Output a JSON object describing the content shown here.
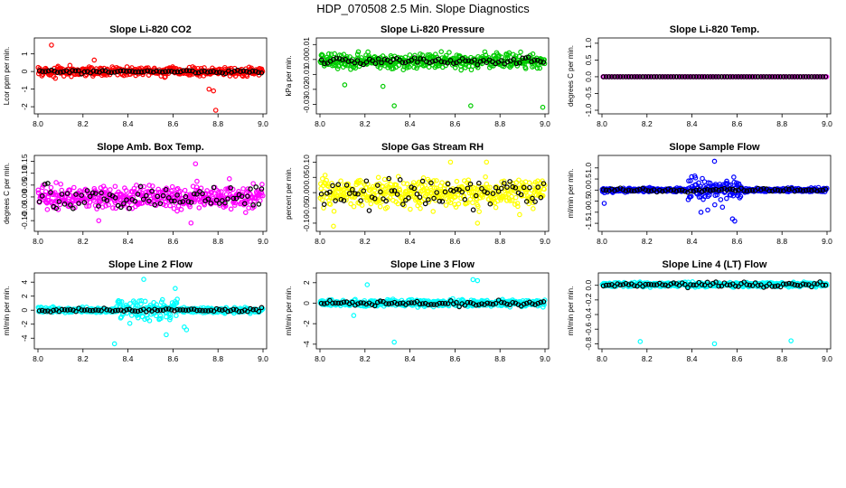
{
  "title": "HDP_070508  2.5 Min. Slope Diagnostics",
  "chart_data": [
    {
      "type": "scatter",
      "title": "Slope Li-820 CO2",
      "ylabel": "Lcor ppm per min.",
      "color": "#ff0000",
      "xlim": [
        8.0,
        9.0
      ],
      "ylim": [
        -2.2,
        1.7
      ],
      "xticks": [
        8.0,
        8.2,
        8.4,
        8.6,
        8.8,
        9.0
      ],
      "xtick_labels": [
        "8.0",
        "8.2",
        "8.4",
        "8.6",
        "8.8",
        "9.0"
      ],
      "yticks": [
        -2,
        -1,
        0,
        1
      ],
      "ytick_labels": [
        "-2",
        "-1",
        "0",
        "1"
      ],
      "n_points": 420,
      "black_n": 75,
      "spread": 0.25,
      "black_spread": 0.1,
      "outliers": [
        [
          8.06,
          1.5
        ],
        [
          8.76,
          -1.0
        ],
        [
          8.78,
          -1.1
        ],
        [
          8.79,
          -2.2
        ],
        [
          8.25,
          0.65
        ]
      ]
    },
    {
      "type": "scatter",
      "title": "Slope Li-820 Pressure",
      "ylabel": "kPa per min.",
      "color": "#00cc00",
      "xlim": [
        8.0,
        9.0
      ],
      "ylim": [
        -0.034,
        0.012
      ],
      "xticks": [
        8.0,
        8.2,
        8.4,
        8.6,
        8.8,
        9.0
      ],
      "xtick_labels": [
        "8.0",
        "8.2",
        "8.4",
        "8.6",
        "8.8",
        "9.0"
      ],
      "yticks": [
        -0.03,
        -0.02,
        -0.01,
        0.0,
        0.01
      ],
      "ytick_labels": [
        "-0.03",
        "-0.02",
        "-0.01",
        "0.00",
        "0.01"
      ],
      "n_points": 420,
      "black_n": 75,
      "center": -0.001,
      "spread": 0.005,
      "black_spread": 0.0025,
      "outliers": [
        [
          8.33,
          -0.031
        ],
        [
          8.67,
          -0.031
        ],
        [
          8.99,
          -0.032
        ],
        [
          8.28,
          -0.018
        ],
        [
          8.11,
          -0.017
        ]
      ]
    },
    {
      "type": "scatter",
      "title": "Slope Li-820 Temp.",
      "ylabel": "degrees C per min.",
      "color": "#ff00ff",
      "xlim": [
        8.0,
        9.0
      ],
      "ylim": [
        -1.0,
        1.05
      ],
      "xticks": [
        8.0,
        8.2,
        8.4,
        8.6,
        8.8,
        9.0
      ],
      "xtick_labels": [
        "8.0",
        "8.2",
        "8.4",
        "8.6",
        "8.8",
        "9.0"
      ],
      "yticks": [
        -1.0,
        -0.5,
        0.0,
        0.5,
        1.0
      ],
      "ytick_labels": [
        "-1.0",
        "-0.5",
        "0.0",
        "0.5",
        "1.0"
      ],
      "n_points": 120,
      "black_n": 80,
      "spread": 0.0,
      "black_spread": 0.0,
      "outliers": []
    },
    {
      "type": "scatter",
      "title": "Slope Amb. Box Temp.",
      "ylabel": "degrees C per min.",
      "color": "#ff00ff",
      "xlim": [
        8.0,
        9.0
      ],
      "ylim": [
        -0.13,
        0.16
      ],
      "xticks": [
        8.0,
        8.2,
        8.4,
        8.6,
        8.8,
        9.0
      ],
      "xtick_labels": [
        "8.0",
        "8.2",
        "8.4",
        "8.6",
        "8.8",
        "9.0"
      ],
      "yticks": [
        -0.1,
        -0.05,
        0.0,
        0.05,
        0.1,
        0.15
      ],
      "ytick_labels": [
        "-0.10",
        "-0.05",
        "0.00",
        "0.05",
        "0.10",
        "0.15"
      ],
      "n_points": 460,
      "black_n": 80,
      "spread": 0.05,
      "black_spread": 0.05,
      "outliers": [
        [
          8.7,
          0.14
        ],
        [
          8.68,
          -0.11
        ],
        [
          8.27,
          -0.1
        ]
      ]
    },
    {
      "type": "scatter",
      "title": "Slope Gas Stream RH",
      "ylabel": "percent per min.",
      "color": "#ffff00",
      "xlim": [
        8.0,
        9.0
      ],
      "ylim": [
        -0.115,
        0.11
      ],
      "xticks": [
        8.0,
        8.2,
        8.4,
        8.6,
        8.8,
        9.0
      ],
      "xtick_labels": [
        "8.0",
        "8.2",
        "8.4",
        "8.6",
        "8.8",
        "9.0"
      ],
      "yticks": [
        -0.1,
        -0.05,
        0.0,
        0.05,
        0.1
      ],
      "ytick_labels": [
        "-0.10",
        "-0.05",
        "0.00",
        "0.05",
        "0.10"
      ],
      "n_points": 460,
      "black_n": 80,
      "spread": 0.045,
      "black_spread": 0.045,
      "outliers": [
        [
          8.06,
          -0.11
        ],
        [
          8.7,
          -0.1
        ],
        [
          8.74,
          0.1
        ],
        [
          8.58,
          0.1
        ]
      ]
    },
    {
      "type": "scatter",
      "title": "Slope Sample Flow",
      "ylabel": "ml/min per min.",
      "color": "#0000ff",
      "xlim": [
        8.0,
        9.0
      ],
      "ylim": [
        -1.7,
        1.4
      ],
      "xticks": [
        8.0,
        8.2,
        8.4,
        8.6,
        8.8,
        9.0
      ],
      "xtick_labels": [
        "8.0",
        "8.2",
        "8.4",
        "8.6",
        "8.8",
        "9.0"
      ],
      "yticks": [
        -1.5,
        -1.0,
        -0.5,
        0.0,
        0.5,
        1.0
      ],
      "ytick_labels": [
        "-1.5",
        "-1.0",
        "-0.5",
        "0.0",
        "0.5",
        "1.0"
      ],
      "n_points": 460,
      "black_n": 80,
      "spread": 0.08,
      "black_spread": 0.07,
      "burst": [
        8.38,
        8.62,
        0.55
      ],
      "outliers": [
        [
          8.5,
          1.3
        ],
        [
          8.59,
          -1.4
        ],
        [
          8.58,
          -1.3
        ],
        [
          8.44,
          -1.0
        ],
        [
          8.47,
          -0.9
        ],
        [
          8.01,
          -0.6
        ]
      ]
    },
    {
      "type": "scatter",
      "title": "Slope Line 2 Flow",
      "ylabel": "ml/min per min.",
      "color": "#00ffff",
      "xlim": [
        8.0,
        9.0
      ],
      "ylim": [
        -5.0,
        4.8
      ],
      "xticks": [
        8.0,
        8.2,
        8.4,
        8.6,
        8.8,
        9.0
      ],
      "xtick_labels": [
        "8.0",
        "8.2",
        "8.4",
        "8.6",
        "8.8",
        "9.0"
      ],
      "yticks": [
        -4,
        -2,
        0,
        2,
        4
      ],
      "ytick_labels": [
        "-4",
        "-2",
        "0",
        "2",
        "4"
      ],
      "n_points": 460,
      "black_n": 80,
      "spread": 0.35,
      "black_spread": 0.25,
      "burst": [
        8.35,
        8.62,
        1.6
      ],
      "outliers": [
        [
          8.34,
          -4.8
        ],
        [
          8.47,
          4.4
        ],
        [
          8.57,
          -3.5
        ],
        [
          8.61,
          3.1
        ],
        [
          8.66,
          -2.8
        ],
        [
          8.65,
          -2.4
        ]
      ]
    },
    {
      "type": "scatter",
      "title": "Slope Line 3 Flow",
      "ylabel": "ml/min per min.",
      "color": "#00ffff",
      "xlim": [
        8.0,
        9.0
      ],
      "ylim": [
        -4.1,
        2.6
      ],
      "xticks": [
        8.0,
        8.2,
        8.4,
        8.6,
        8.8,
        9.0
      ],
      "xtick_labels": [
        "8.0",
        "8.2",
        "8.4",
        "8.6",
        "8.8",
        "9.0"
      ],
      "yticks": [
        -4,
        -2,
        0,
        2
      ],
      "ytick_labels": [
        "-4",
        "-2",
        "0",
        "2"
      ],
      "n_points": 460,
      "black_n": 80,
      "spread": 0.3,
      "black_spread": 0.25,
      "outliers": [
        [
          8.33,
          -3.8
        ],
        [
          8.68,
          2.3
        ],
        [
          8.7,
          2.2
        ],
        [
          8.21,
          1.8
        ],
        [
          8.15,
          -1.2
        ]
      ]
    },
    {
      "type": "scatter",
      "title": "Slope Line 4 (LT) Flow",
      "ylabel": "ml/min per min.",
      "color": "#00ffff",
      "xlim": [
        8.0,
        9.0
      ],
      "ylim": [
        -0.82,
        0.12
      ],
      "xticks": [
        8.0,
        8.2,
        8.4,
        8.6,
        8.8,
        9.0
      ],
      "xtick_labels": [
        "8.0",
        "8.2",
        "8.4",
        "8.6",
        "8.8",
        "9.0"
      ],
      "yticks": [
        -0.8,
        -0.6,
        -0.4,
        -0.2,
        0.0
      ],
      "ytick_labels": [
        "-0.8",
        "-0.6",
        "-0.4",
        "-0.2",
        "0.0"
      ],
      "n_points": 460,
      "black_n": 80,
      "center": 0.01,
      "spread": 0.03,
      "black_spread": 0.03,
      "outliers": [
        [
          8.17,
          -0.77
        ],
        [
          8.5,
          -0.8
        ],
        [
          8.84,
          -0.76
        ]
      ]
    }
  ]
}
